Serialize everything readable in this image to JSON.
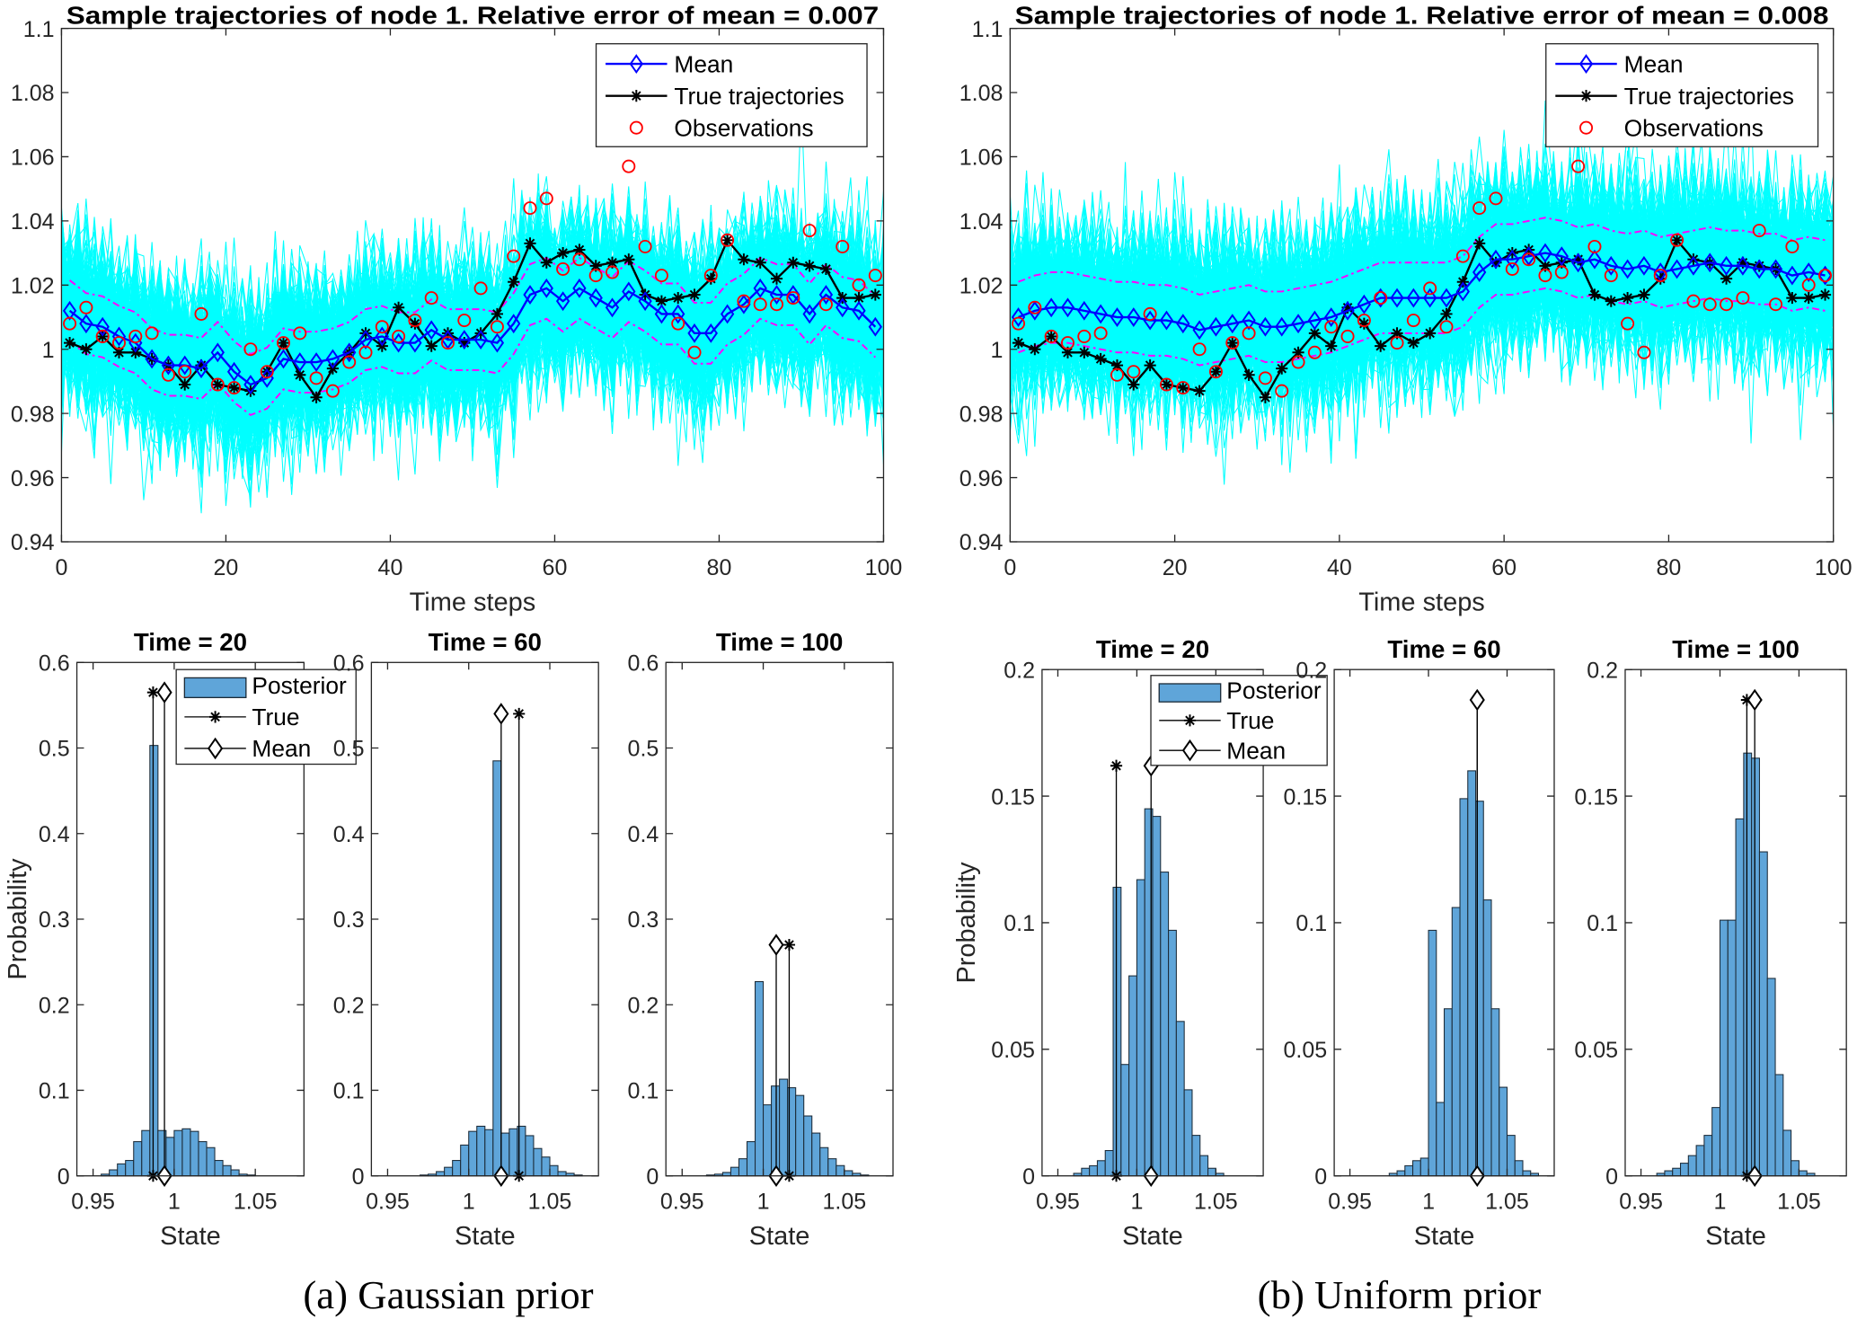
{
  "chart_data": [
    {
      "type": "line",
      "title": "Sample trajectories of node 1. Relative error of mean = 0.007",
      "xlabel": "Time steps",
      "ylabel": "",
      "xlim": [
        0,
        100
      ],
      "ylim": [
        0.94,
        1.1
      ],
      "xticks": [
        0,
        20,
        40,
        60,
        80,
        100
      ],
      "xtick_labels": [
        "0",
        "20",
        "40",
        "60",
        "80",
        "100"
      ],
      "yticks": [
        0.94,
        0.96,
        0.98,
        1,
        1.02,
        1.04,
        1.06,
        1.08,
        1.1
      ],
      "ytick_labels": [
        "0.94",
        "0.96",
        "0.98",
        "1",
        "1.02",
        "1.04",
        "1.06",
        "1.08",
        "1.1"
      ],
      "legend": [
        "Mean",
        "True trajectories",
        "Observations"
      ],
      "legend_position": "top-right",
      "x": [
        1,
        3,
        5,
        7,
        9,
        11,
        13,
        15,
        17,
        19,
        21,
        23,
        25,
        27,
        29,
        31,
        33,
        35,
        37,
        39,
        41,
        43,
        45,
        47,
        49,
        51,
        53,
        55,
        57,
        59,
        61,
        63,
        65,
        67,
        69,
        71,
        73,
        75,
        77,
        79,
        81,
        83,
        85,
        87,
        89,
        91,
        93,
        95,
        97,
        99
      ],
      "series": [
        {
          "name": "Mean",
          "color": "#0000ff",
          "values": [
            1.012,
            1.008,
            1.007,
            1.004,
            1.002,
            0.997,
            0.995,
            0.995,
            0.994,
            0.999,
            0.993,
            0.989,
            0.991,
            0.997,
            0.996,
            0.996,
            0.997,
            0.999,
            1.003,
            1.004,
            1.002,
            1.002,
            1.006,
            1.003,
            1.003,
            1.003,
            1.002,
            1.008,
            1.017,
            1.019,
            1.015,
            1.019,
            1.016,
            1.013,
            1.018,
            1.015,
            1.011,
            1.011,
            1.005,
            1.005,
            1.011,
            1.014,
            1.019,
            1.017,
            1.017,
            1.011,
            1.017,
            1.013,
            1.012,
            1.007
          ]
        },
        {
          "name": "True trajectories",
          "color": "#000000",
          "values": [
            1.002,
            1.0,
            1.004,
            0.999,
            0.999,
            0.997,
            0.995,
            0.989,
            0.995,
            0.989,
            0.988,
            0.987,
            0.993,
            1.002,
            0.992,
            0.985,
            0.994,
            0.999,
            1.005,
            1.001,
            1.013,
            1.008,
            1.001,
            1.005,
            1.002,
            1.005,
            1.011,
            1.021,
            1.033,
            1.027,
            1.03,
            1.031,
            1.026,
            1.027,
            1.028,
            1.017,
            1.015,
            1.016,
            1.017,
            1.022,
            1.034,
            1.028,
            1.027,
            1.022,
            1.027,
            1.026,
            1.025,
            1.016,
            1.016,
            1.017
          ]
        },
        {
          "name": "Observations",
          "color": "#ff0000",
          "values": [
            1.008,
            1.013,
            1.004,
            1.002,
            1.004,
            1.005,
            0.992,
            0.993,
            1.011,
            0.989,
            0.988,
            1.0,
            0.993,
            1.002,
            1.005,
            0.991,
            0.987,
            0.996,
            0.999,
            1.007,
            1.004,
            1.009,
            1.016,
            1.002,
            1.009,
            1.019,
            1.007,
            1.029,
            1.044,
            1.047,
            1.025,
            1.028,
            1.023,
            1.024,
            1.057,
            1.032,
            1.023,
            1.008,
            0.999,
            1.023,
            1.034,
            1.015,
            1.014,
            1.014,
            1.016,
            1.037,
            1.014,
            1.032,
            1.02,
            1.023
          ]
        }
      ],
      "band_halfwidth": 0.0095,
      "band_color": "#ff00ff",
      "samples_color": "#00ffff",
      "sample_spread": 0.012
    },
    {
      "type": "line",
      "title": "Sample trajectories of node 1. Relative error of mean = 0.008",
      "xlabel": "Time steps",
      "ylabel": "",
      "xlim": [
        0,
        100
      ],
      "ylim": [
        0.94,
        1.1
      ],
      "xticks": [
        0,
        20,
        40,
        60,
        80,
        100
      ],
      "xtick_labels": [
        "0",
        "20",
        "40",
        "60",
        "80",
        "100"
      ],
      "yticks": [
        0.94,
        0.96,
        0.98,
        1,
        1.02,
        1.04,
        1.06,
        1.08,
        1.1
      ],
      "ytick_labels": [
        "0.94",
        "0.96",
        "0.98",
        "1",
        "1.02",
        "1.04",
        "1.06",
        "1.08",
        "1.1"
      ],
      "legend": [
        "Mean",
        "True trajectories",
        "Observations"
      ],
      "legend_position": "top-right",
      "x": [
        1,
        3,
        5,
        7,
        9,
        11,
        13,
        15,
        17,
        19,
        21,
        23,
        25,
        27,
        29,
        31,
        33,
        35,
        37,
        39,
        41,
        43,
        45,
        47,
        49,
        51,
        53,
        55,
        57,
        59,
        61,
        63,
        65,
        67,
        69,
        71,
        73,
        75,
        77,
        79,
        81,
        83,
        85,
        87,
        89,
        91,
        93,
        95,
        97,
        99
      ],
      "series": [
        {
          "name": "Mean",
          "color": "#0000ff",
          "values": [
            1.01,
            1.012,
            1.013,
            1.013,
            1.012,
            1.011,
            1.01,
            1.01,
            1.009,
            1.009,
            1.008,
            1.006,
            1.007,
            1.008,
            1.009,
            1.007,
            1.007,
            1.008,
            1.009,
            1.01,
            1.012,
            1.014,
            1.016,
            1.016,
            1.016,
            1.016,
            1.016,
            1.018,
            1.024,
            1.028,
            1.028,
            1.029,
            1.03,
            1.029,
            1.027,
            1.028,
            1.026,
            1.025,
            1.026,
            1.024,
            1.025,
            1.026,
            1.027,
            1.026,
            1.026,
            1.025,
            1.025,
            1.023,
            1.024,
            1.023
          ]
        },
        {
          "name": "True trajectories",
          "color": "#000000",
          "values": [
            1.002,
            1.0,
            1.004,
            0.999,
            0.999,
            0.997,
            0.995,
            0.989,
            0.995,
            0.989,
            0.988,
            0.987,
            0.993,
            1.002,
            0.992,
            0.985,
            0.994,
            0.999,
            1.005,
            1.001,
            1.013,
            1.008,
            1.001,
            1.005,
            1.002,
            1.005,
            1.011,
            1.021,
            1.033,
            1.027,
            1.03,
            1.031,
            1.026,
            1.027,
            1.028,
            1.017,
            1.015,
            1.016,
            1.017,
            1.022,
            1.034,
            1.028,
            1.027,
            1.022,
            1.027,
            1.026,
            1.025,
            1.016,
            1.016,
            1.017
          ]
        },
        {
          "name": "Observations",
          "color": "#ff0000",
          "values": [
            1.008,
            1.013,
            1.004,
            1.002,
            1.004,
            1.005,
            0.992,
            0.993,
            1.011,
            0.989,
            0.988,
            1.0,
            0.993,
            1.002,
            1.005,
            0.991,
            0.987,
            0.996,
            0.999,
            1.007,
            1.004,
            1.009,
            1.016,
            1.002,
            1.009,
            1.019,
            1.007,
            1.029,
            1.044,
            1.047,
            1.025,
            1.028,
            1.023,
            1.024,
            1.057,
            1.032,
            1.023,
            1.008,
            0.999,
            1.023,
            1.034,
            1.015,
            1.014,
            1.014,
            1.016,
            1.037,
            1.014,
            1.032,
            1.02,
            1.023
          ]
        }
      ],
      "band_halfwidth": 0.011,
      "band_color": "#ff00ff",
      "samples_color": "#00ffff",
      "sample_spread": 0.013
    },
    {
      "type": "bar",
      "title": "Time = 20",
      "xlabel": "State",
      "ylabel": "Probability",
      "xlim": [
        0.94,
        1.08
      ],
      "ylim": [
        0,
        0.6
      ],
      "xticks": [
        0.95,
        1,
        1.05
      ],
      "xtick_labels": [
        "0.95",
        "1",
        "1.05"
      ],
      "yticks": [
        0,
        0.1,
        0.2,
        0.3,
        0.4,
        0.5,
        0.6
      ],
      "ytick_labels": [
        "0",
        "0.1",
        "0.2",
        "0.3",
        "0.4",
        "0.5",
        "0.6"
      ],
      "legend": [
        "Posterior",
        "True",
        "Mean"
      ],
      "legend_position": "top-right",
      "bar_color": "#5fa5d9",
      "bin_start": 0.955,
      "bin_width": 0.005,
      "values": [
        0.002,
        0.007,
        0.014,
        0.018,
        0.04,
        0.053,
        0.503,
        0.053,
        0.045,
        0.053,
        0.055,
        0.052,
        0.04,
        0.033,
        0.018,
        0.012,
        0.007,
        0.002,
        0.001
      ],
      "true_state": 0.987,
      "mean_state": 0.994,
      "marker_height": 0.565
    },
    {
      "type": "bar",
      "title": "Time = 60",
      "xlabel": "State",
      "ylabel": "",
      "xlim": [
        0.94,
        1.08
      ],
      "ylim": [
        0,
        0.6
      ],
      "xticks": [
        0.95,
        1,
        1.05
      ],
      "xtick_labels": [
        "0.95",
        "1",
        "1.05"
      ],
      "yticks": [
        0,
        0.1,
        0.2,
        0.3,
        0.4,
        0.5,
        0.6
      ],
      "ytick_labels": [
        "0",
        "0.1",
        "0.2",
        "0.3",
        "0.4",
        "0.5",
        "0.6"
      ],
      "bar_color": "#5fa5d9",
      "bin_start": 0.97,
      "bin_width": 0.005,
      "values": [
        0.001,
        0.002,
        0.005,
        0.01,
        0.018,
        0.036,
        0.052,
        0.058,
        0.054,
        0.485,
        0.05,
        0.055,
        0.058,
        0.047,
        0.032,
        0.022,
        0.012,
        0.005,
        0.003,
        0.001
      ],
      "true_state": 1.031,
      "mean_state": 1.02,
      "marker_height": 0.54
    },
    {
      "type": "bar",
      "title": "Time = 100",
      "xlabel": "State",
      "ylabel": "",
      "xlim": [
        0.94,
        1.08
      ],
      "ylim": [
        0,
        0.6
      ],
      "xticks": [
        0.95,
        1,
        1.05
      ],
      "xtick_labels": [
        "0.95",
        "1",
        "1.05"
      ],
      "yticks": [
        0,
        0.1,
        0.2,
        0.3,
        0.4,
        0.5,
        0.6
      ],
      "ytick_labels": [
        "0",
        "0.1",
        "0.2",
        "0.3",
        "0.4",
        "0.5",
        "0.6"
      ],
      "bar_color": "#5fa5d9",
      "bin_start": 0.965,
      "bin_width": 0.005,
      "values": [
        0.001,
        0.002,
        0.004,
        0.01,
        0.02,
        0.04,
        0.227,
        0.083,
        0.105,
        0.113,
        0.103,
        0.094,
        0.07,
        0.05,
        0.033,
        0.02,
        0.012,
        0.006,
        0.003,
        0.001
      ],
      "true_state": 1.016,
      "mean_state": 1.008,
      "marker_height": 0.27
    },
    {
      "type": "bar",
      "title": "Time = 20",
      "xlabel": "State",
      "ylabel": "Probability",
      "xlim": [
        0.94,
        1.08
      ],
      "ylim": [
        0,
        0.2
      ],
      "xticks": [
        0.95,
        1,
        1.05
      ],
      "xtick_labels": [
        "0.95",
        "1",
        "1.05"
      ],
      "yticks": [
        0,
        0.05,
        0.1,
        0.15,
        0.2
      ],
      "ytick_labels": [
        "0",
        "0.05",
        "0.1",
        "0.15",
        "0.2"
      ],
      "legend": [
        "Posterior",
        "True",
        "Mean"
      ],
      "legend_position": "top-right",
      "bar_color": "#5fa5d9",
      "bin_start": 0.96,
      "bin_width": 0.005,
      "values": [
        0.001,
        0.003,
        0.004,
        0.006,
        0.01,
        0.114,
        0.044,
        0.079,
        0.117,
        0.145,
        0.142,
        0.12,
        0.097,
        0.061,
        0.034,
        0.016,
        0.008,
        0.003,
        0.001
      ],
      "true_state": 0.987,
      "mean_state": 1.009,
      "marker_height": 0.162
    },
    {
      "type": "bar",
      "title": "Time = 60",
      "xlabel": "State",
      "ylabel": "",
      "xlim": [
        0.94,
        1.08
      ],
      "ylim": [
        0,
        0.2
      ],
      "xticks": [
        0.95,
        1,
        1.05
      ],
      "xtick_labels": [
        "0.95",
        "1",
        "1.05"
      ],
      "yticks": [
        0,
        0.05,
        0.1,
        0.15,
        0.2
      ],
      "ytick_labels": [
        "0",
        "0.05",
        "0.1",
        "0.15",
        "0.2"
      ],
      "bar_color": "#5fa5d9",
      "bin_start": 0.975,
      "bin_width": 0.005,
      "values": [
        0.001,
        0.002,
        0.004,
        0.006,
        0.007,
        0.097,
        0.029,
        0.066,
        0.106,
        0.149,
        0.16,
        0.148,
        0.109,
        0.066,
        0.035,
        0.016,
        0.006,
        0.002,
        0.001
      ],
      "true_state": 1.031,
      "mean_state": 1.031,
      "marker_height": 0.188
    },
    {
      "type": "bar",
      "title": "Time = 100",
      "xlabel": "State",
      "ylabel": "",
      "xlim": [
        0.94,
        1.08
      ],
      "ylim": [
        0,
        0.2
      ],
      "xticks": [
        0.95,
        1,
        1.05
      ],
      "xtick_labels": [
        "0.95",
        "1",
        "1.05"
      ],
      "yticks": [
        0,
        0.05,
        0.1,
        0.15,
        0.2
      ],
      "ytick_labels": [
        "0",
        "0.05",
        "0.1",
        "0.15",
        "0.2"
      ],
      "bar_color": "#5fa5d9",
      "bin_start": 0.96,
      "bin_width": 0.005,
      "values": [
        0.001,
        0.002,
        0.003,
        0.005,
        0.008,
        0.012,
        0.016,
        0.027,
        0.101,
        0.101,
        0.141,
        0.167,
        0.165,
        0.128,
        0.078,
        0.04,
        0.018,
        0.006,
        0.002,
        0.001
      ],
      "true_state": 1.017,
      "mean_state": 1.022,
      "marker_height": 0.188
    }
  ],
  "captions": [
    "(a) Gaussian prior",
    "(b) Uniform prior"
  ]
}
